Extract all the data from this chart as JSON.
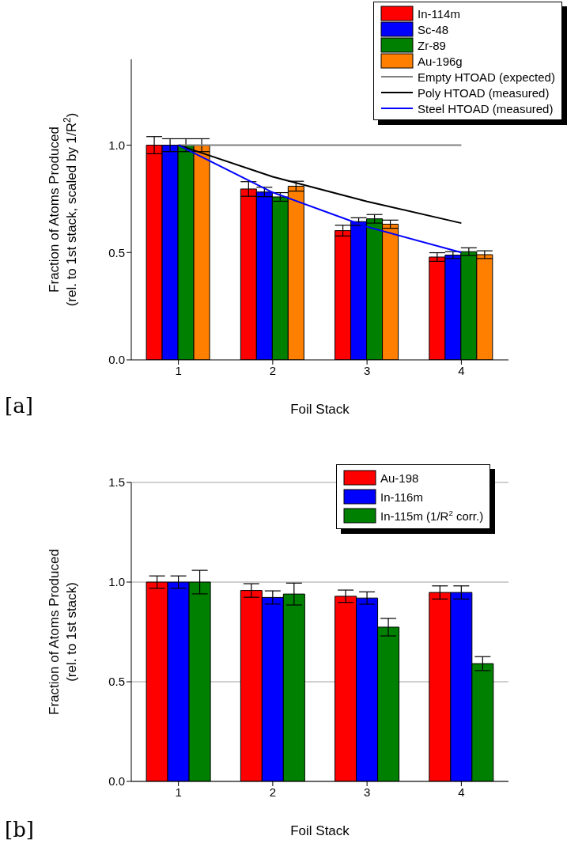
{
  "chart_data": [
    {
      "type": "bar",
      "xlabel": "Foil Stack",
      "ylabel": "Fraction of Atoms Produced\n(rel. to 1st stack, scaled by 1/R$^{2}$)",
      "categories": [
        "1",
        "2",
        "3",
        "4"
      ],
      "series": [
        {
          "name": "In-114m",
          "color": "#ff0000",
          "values": [
            1.0,
            0.796,
            0.602,
            0.479
          ],
          "errors": [
            0.04,
            0.034,
            0.025,
            0.02
          ]
        },
        {
          "name": "Sc-48",
          "color": "#0000ff",
          "values": [
            1.0,
            0.782,
            0.644,
            0.488
          ],
          "errors": [
            0.03,
            0.022,
            0.018,
            0.016
          ]
        },
        {
          "name": "Zr-89",
          "color": "#008000",
          "values": [
            1.0,
            0.759,
            0.657,
            0.504
          ],
          "errors": [
            0.03,
            0.02,
            0.02,
            0.018
          ]
        },
        {
          "name": "Au-196g",
          "color": "#ff8000",
          "values": [
            1.0,
            0.809,
            0.632,
            0.49
          ],
          "errors": [
            0.03,
            0.023,
            0.019,
            0.018
          ]
        },
        {
          "name": "Empty HTOAD (expected)",
          "type": "line",
          "color": "#808080",
          "values": [
            1.0,
            1.0,
            1.0,
            1.0
          ]
        },
        {
          "name": "Poly HTOAD (measured)",
          "type": "line",
          "color": "#000000",
          "values": [
            1.0,
            0.853,
            0.738,
            0.637
          ]
        },
        {
          "name": "Steel HTOAD (measured)",
          "type": "line",
          "color": "#0000ff",
          "values": [
            1.0,
            0.78,
            0.62,
            0.5
          ]
        }
      ],
      "ylim": [
        0,
        1.4
      ],
      "yticks": [
        {
          "value": 0,
          "label": "0.0"
        },
        {
          "value": 0.5,
          "label": "0.5"
        },
        {
          "value": 1,
          "label": "1.0"
        }
      ],
      "legend": "top right",
      "marker": "none",
      "annotations": [
        "[a]"
      ]
    },
    {
      "type": "bar",
      "xlabel": "Foil Stack",
      "ylabel": "Fraction of Atoms Produced\n(rel. to 1st stack)",
      "categories": [
        "1",
        "2",
        "3",
        "4"
      ],
      "series": [
        {
          "name": "Au-198",
          "color": "#ff0000",
          "values": [
            1.0,
            0.958,
            0.929,
            0.948
          ],
          "errors": [
            0.031,
            0.034,
            0.031,
            0.033
          ]
        },
        {
          "name": "In-116m",
          "color": "#0000ff",
          "values": [
            1.0,
            0.923,
            0.92,
            0.948
          ],
          "errors": [
            0.031,
            0.033,
            0.031,
            0.033
          ]
        },
        {
          "name": "In-115m (1/R$^{2}$ corr.)",
          "color": "#008000",
          "values": [
            1.0,
            0.94,
            0.774,
            0.591
          ],
          "errors": [
            0.059,
            0.055,
            0.044,
            0.035
          ]
        }
      ],
      "ylim": [
        0,
        1.5
      ],
      "yticks": [
        {
          "value": 0,
          "label": "0.0"
        },
        {
          "value": 0.5,
          "label": "0.5"
        },
        {
          "value": 1,
          "label": "1.0"
        },
        {
          "value": 1.5,
          "label": "1.5"
        }
      ],
      "grid": "y",
      "legend": "top right",
      "annotations": [
        "[b]"
      ]
    }
  ]
}
